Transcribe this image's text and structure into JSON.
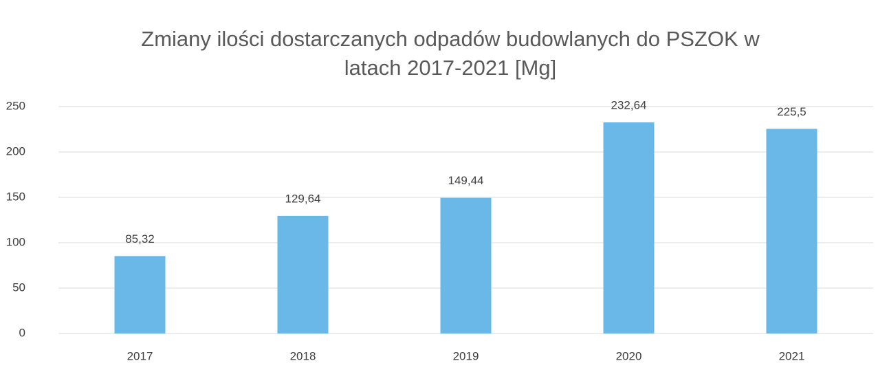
{
  "chart_data": {
    "type": "bar",
    "title": "Zmiany ilości dostarczanych odpadów budowlanych do PSZOK w latach 2017-2021 [Mg]",
    "categories": [
      "2017",
      "2018",
      "2019",
      "2020",
      "2021"
    ],
    "values": [
      85.32,
      129.64,
      149.44,
      232.64,
      225.5
    ],
    "value_labels": [
      "85,32",
      "129,64",
      "149,44",
      "232,64",
      "225,5"
    ],
    "color": "#6ab8e8",
    "ylim": [
      0,
      250
    ],
    "yticks": [
      0,
      50,
      100,
      150,
      200,
      250
    ],
    "grid": true
  }
}
